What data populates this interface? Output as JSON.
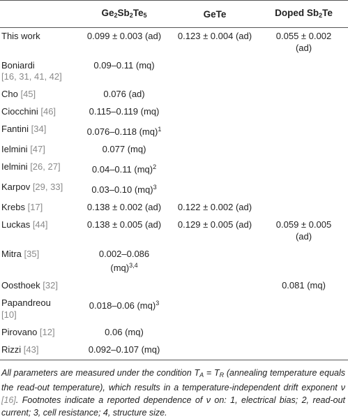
{
  "header": {
    "col1_a": "Ge",
    "col1_sub1": "2",
    "col1_b": "Sb",
    "col1_sub2": "2",
    "col1_c": "Te",
    "col1_sub3": "5",
    "col2": "GeTe",
    "col3_a": "Doped Sb",
    "col3_sub": "2",
    "col3_b": "Te"
  },
  "rows": [
    {
      "name": "This work",
      "ref": "",
      "name2": "",
      "ref2": "",
      "gst": "0.099 ± 0.003 (ad)",
      "gst_sup": "",
      "gete": "0.123 ± 0.004 (ad)",
      "sbte": "0.055 ± 0.002",
      "sbte2": "(ad)"
    },
    {
      "name": "Boniardi",
      "ref": "",
      "name2": "",
      "ref2": "[16, 31, 41, 42]",
      "gst": "0.09–0.11 (mq)",
      "gst_sup": "",
      "gete": "",
      "sbte": "",
      "sbte2": ""
    },
    {
      "name": "Cho ",
      "ref": "[45]",
      "name2": "",
      "ref2": "",
      "gst": "0.076 (ad)",
      "gst_sup": "",
      "gete": "",
      "sbte": "",
      "sbte2": ""
    },
    {
      "name": "Ciocchini ",
      "ref": "[46]",
      "name2": "",
      "ref2": "",
      "gst": "0.115–0.119 (mq)",
      "gst_sup": "",
      "gete": "",
      "sbte": "",
      "sbte2": ""
    },
    {
      "name": "Fantini ",
      "ref": "[34]",
      "name2": "",
      "ref2": "",
      "gst": "0.076–0.118 (mq)",
      "gst_sup": "1",
      "gete": "",
      "sbte": "",
      "sbte2": ""
    },
    {
      "name": "Ielmini ",
      "ref": "[47]",
      "name2": "",
      "ref2": "",
      "gst": "0.077 (mq)",
      "gst_sup": "",
      "gete": "",
      "sbte": "",
      "sbte2": ""
    },
    {
      "name": "Ielmini ",
      "ref": "[26, 27]",
      "name2": "",
      "ref2": "",
      "gst": "0.04–0.11 (mq)",
      "gst_sup": "2",
      "gete": "",
      "sbte": "",
      "sbte2": ""
    },
    {
      "name": "Karpov ",
      "ref": "[29, 33]",
      "name2": "",
      "ref2": "",
      "gst": "0.03–0.10 (mq)",
      "gst_sup": "3",
      "gete": "",
      "sbte": "",
      "sbte2": ""
    },
    {
      "name": "Krebs ",
      "ref": "[17]",
      "name2": "",
      "ref2": "",
      "gst": "0.138 ± 0.002 (ad)",
      "gst_sup": "",
      "gete": "0.122 ± 0.002 (ad)",
      "sbte": "",
      "sbte2": ""
    },
    {
      "name": "Luckas ",
      "ref": "[44]",
      "name2": "",
      "ref2": "",
      "gst": "0.138 ± 0.005 (ad)",
      "gst_sup": "",
      "gete": "0.129 ± 0.005 (ad)",
      "sbte": "0.059 ± 0.005",
      "sbte2": "(ad)"
    },
    {
      "name": "Mitra ",
      "ref": "[35]",
      "name2": "",
      "ref2": "",
      "gst": "0.002–0.086",
      "gst2": "(mq)",
      "gst_sup": "3,4",
      "gete": "",
      "sbte": "",
      "sbte2": ""
    },
    {
      "name": "Oosthoek ",
      "ref": "[32]",
      "name2": "",
      "ref2": "",
      "gst": "",
      "gst_sup": "",
      "gete": "",
      "sbte": "0.081 (mq)",
      "sbte2": ""
    },
    {
      "name": "Papandreou",
      "ref": "",
      "name2": "",
      "ref2": "[10]",
      "gst": "0.018–0.06 (mq)",
      "gst_sup": "3",
      "gete": "",
      "sbte": "",
      "sbte2": ""
    },
    {
      "name": "Pirovano ",
      "ref": "[12]",
      "name2": "",
      "ref2": "",
      "gst": "0.06 (mq)",
      "gst_sup": "",
      "gete": "",
      "sbte": "",
      "sbte2": ""
    },
    {
      "name": "Rizzi ",
      "ref": "[43]",
      "name2": "",
      "ref2": "",
      "gst": "0.092–0.107 (mq)",
      "gst_sup": "",
      "gete": "",
      "sbte": "",
      "sbte2": ""
    }
  ],
  "footnote": {
    "p1": "All parameters are measured under the condition ",
    "ta": "T",
    "ta_sub": "A",
    "eq": " = ",
    "tr": "T",
    "tr_sub": "R",
    "p2": " (annealing temperature equals the read-out temperature), which results in a temperature-independent drift exponent ν ",
    "ref": "[16]",
    "p3": ". Footnotes indicate a reported dependence of ν on: 1, electrical bias; 2, read-out current; 3, cell resistance; 4, structure size."
  }
}
